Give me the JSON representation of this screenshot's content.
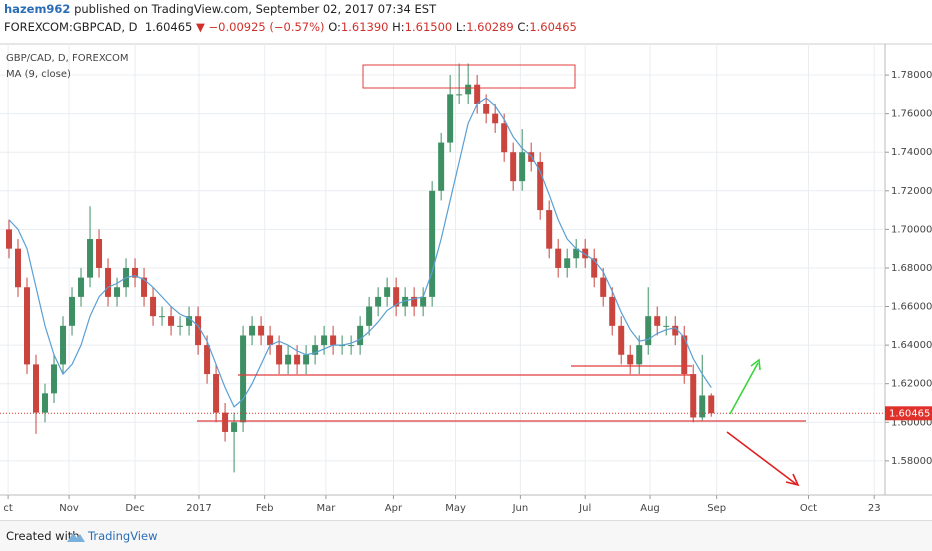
{
  "header": {
    "author": "hazem962",
    "published": "published on TradingView.com, September 02, 2017 07:34 EST",
    "symbol": "FOREXCOM:GBPCAD, D",
    "change": "▼ −0.00925 (−0.57%)",
    "ohlc": [
      {
        "label": "O:",
        "value": "1.61390"
      },
      {
        "label": "H:",
        "value": "1.61500"
      },
      {
        "label": "L:",
        "value": "1.60289"
      },
      {
        "label": "C:",
        "value": "1.60465"
      }
    ]
  },
  "chart_data": {
    "type": "candlestick",
    "last_price": {
      "value": 1.60465,
      "label": "1.60465"
    },
    "last_color": "#e0302a",
    "xlim": [
      -1,
      97.3
    ],
    "xticks": [
      {
        "value": -0.1,
        "label": "ct"
      },
      {
        "value": 6.67,
        "label": "Nov"
      },
      {
        "value": 14,
        "label": "Dec"
      },
      {
        "value": 21.1,
        "label": "2017"
      },
      {
        "value": 28.4,
        "label": "Feb"
      },
      {
        "value": 35.2,
        "label": "Mar"
      },
      {
        "value": 42.7,
        "label": "Apr"
      },
      {
        "value": 49.6,
        "label": "May"
      },
      {
        "value": 56.8,
        "label": "Jun"
      },
      {
        "value": 64,
        "label": "Jul"
      },
      {
        "value": 71.2,
        "label": "Aug"
      },
      {
        "value": 78.6,
        "label": "Sep"
      },
      {
        "value": 88.8,
        "label": "Oct"
      },
      {
        "value": 96.1,
        "label": "23"
      }
    ],
    "ylim": [
      1.5623,
      1.7961
    ],
    "yticks": [
      {
        "value": 1.58,
        "label": "1.58000"
      },
      {
        "value": 1.6,
        "label": "1.60000"
      },
      {
        "value": 1.62,
        "label": "1.62000"
      },
      {
        "value": 1.64,
        "label": "1.64000"
      },
      {
        "value": 1.66,
        "label": "1.66000"
      },
      {
        "value": 1.68,
        "label": "1.68000"
      },
      {
        "value": 1.7,
        "label": "1.70000"
      },
      {
        "value": 1.72,
        "label": "1.72000"
      },
      {
        "value": 1.74,
        "label": "1.74000"
      },
      {
        "value": 1.76,
        "label": "1.76000"
      },
      {
        "value": 1.78,
        "label": "1.78000"
      }
    ],
    "grid": true,
    "series": [
      {
        "name": "GBP/CAD, D, FOREXCOM",
        "up_color": "#3f8f65",
        "down_color": "#c9453e",
        "open": [
          1.7,
          1.69,
          1.67,
          1.63,
          1.605,
          1.615,
          1.63,
          1.65,
          1.665,
          1.675,
          1.695,
          1.68,
          1.665,
          1.67,
          1.68,
          1.675,
          1.665,
          1.655,
          1.655,
          1.65,
          1.65,
          1.655,
          1.64,
          1.625,
          1.605,
          1.595,
          1.6,
          1.645,
          1.65,
          1.645,
          1.64,
          1.63,
          1.635,
          1.63,
          1.635,
          1.64,
          1.645,
          1.64,
          1.64,
          1.64,
          1.65,
          1.66,
          1.665,
          1.67,
          1.66,
          1.665,
          1.66,
          1.665,
          1.72,
          1.745,
          1.77,
          1.77,
          1.775,
          1.765,
          1.76,
          1.755,
          1.74,
          1.725,
          1.74,
          1.735,
          1.71,
          1.69,
          1.68,
          1.685,
          1.69,
          1.685,
          1.675,
          1.665,
          1.65,
          1.635,
          1.63,
          1.64,
          1.655,
          1.65,
          1.65,
          1.645,
          1.625,
          1.6025,
          1.6139
        ],
        "high": [
          1.705,
          1.695,
          1.675,
          1.635,
          1.62,
          1.635,
          1.655,
          1.67,
          1.68,
          1.712,
          1.7,
          1.685,
          1.675,
          1.685,
          1.685,
          1.68,
          1.67,
          1.66,
          1.66,
          1.655,
          1.66,
          1.66,
          1.645,
          1.63,
          1.61,
          1.605,
          1.65,
          1.655,
          1.655,
          1.65,
          1.645,
          1.64,
          1.64,
          1.64,
          1.645,
          1.65,
          1.65,
          1.645,
          1.645,
          1.655,
          1.665,
          1.67,
          1.675,
          1.675,
          1.67,
          1.67,
          1.67,
          1.725,
          1.75,
          1.78,
          1.786,
          1.786,
          1.78,
          1.77,
          1.765,
          1.76,
          1.745,
          1.752,
          1.745,
          1.74,
          1.715,
          1.695,
          1.69,
          1.695,
          1.695,
          1.69,
          1.68,
          1.67,
          1.655,
          1.64,
          1.645,
          1.67,
          1.66,
          1.655,
          1.655,
          1.65,
          1.63,
          1.635,
          1.615
        ],
        "low": [
          1.685,
          1.665,
          1.625,
          1.594,
          1.6,
          1.61,
          1.625,
          1.645,
          1.66,
          1.67,
          1.675,
          1.66,
          1.66,
          1.665,
          1.67,
          1.66,
          1.65,
          1.65,
          1.645,
          1.645,
          1.645,
          1.635,
          1.62,
          1.6,
          1.59,
          1.574,
          1.595,
          1.64,
          1.64,
          1.635,
          1.625,
          1.625,
          1.625,
          1.625,
          1.63,
          1.635,
          1.635,
          1.635,
          1.635,
          1.635,
          1.645,
          1.655,
          1.66,
          1.655,
          1.655,
          1.655,
          1.655,
          1.66,
          1.715,
          1.74,
          1.765,
          1.765,
          1.76,
          1.755,
          1.75,
          1.735,
          1.72,
          1.72,
          1.73,
          1.705,
          1.685,
          1.675,
          1.675,
          1.68,
          1.68,
          1.67,
          1.66,
          1.645,
          1.63,
          1.625,
          1.625,
          1.635,
          1.645,
          1.645,
          1.64,
          1.62,
          1.6,
          1.601,
          1.60289
        ],
        "close": [
          1.69,
          1.67,
          1.63,
          1.605,
          1.615,
          1.63,
          1.65,
          1.665,
          1.675,
          1.695,
          1.68,
          1.665,
          1.67,
          1.68,
          1.675,
          1.665,
          1.655,
          1.655,
          1.65,
          1.65,
          1.655,
          1.64,
          1.625,
          1.605,
          1.595,
          1.6,
          1.645,
          1.65,
          1.645,
          1.64,
          1.63,
          1.635,
          1.63,
          1.635,
          1.64,
          1.645,
          1.64,
          1.64,
          1.64,
          1.65,
          1.66,
          1.665,
          1.67,
          1.66,
          1.665,
          1.66,
          1.665,
          1.72,
          1.745,
          1.77,
          1.77,
          1.775,
          1.765,
          1.76,
          1.755,
          1.74,
          1.725,
          1.74,
          1.735,
          1.71,
          1.69,
          1.68,
          1.685,
          1.69,
          1.685,
          1.675,
          1.665,
          1.65,
          1.635,
          1.63,
          1.64,
          1.655,
          1.65,
          1.65,
          1.645,
          1.625,
          1.6025,
          1.6139,
          1.60465
        ]
      },
      {
        "name": "MA (9, close)",
        "color": "#5a9fd4",
        "values": [
          1.705,
          1.7,
          1.69,
          1.67,
          1.65,
          1.635,
          1.625,
          1.63,
          1.64,
          1.655,
          1.665,
          1.67,
          1.672,
          1.675,
          1.676,
          1.674,
          1.67,
          1.665,
          1.66,
          1.656,
          1.654,
          1.65,
          1.642,
          1.63,
          1.618,
          1.608,
          1.612,
          1.62,
          1.63,
          1.64,
          1.642,
          1.64,
          1.637,
          1.635,
          1.636,
          1.638,
          1.64,
          1.64,
          1.641,
          1.643,
          1.647,
          1.652,
          1.658,
          1.661,
          1.663,
          1.664,
          1.665,
          1.678,
          1.695,
          1.715,
          1.735,
          1.755,
          1.765,
          1.768,
          1.764,
          1.757,
          1.748,
          1.742,
          1.738,
          1.73,
          1.718,
          1.705,
          1.695,
          1.69,
          1.687,
          1.684,
          1.678,
          1.668,
          1.657,
          1.648,
          1.642,
          1.643,
          1.646,
          1.648,
          1.649,
          1.644,
          1.633,
          1.625,
          1.618
        ]
      }
    ]
  },
  "footer": {
    "created": "Created with",
    "brand": "TradingView"
  }
}
